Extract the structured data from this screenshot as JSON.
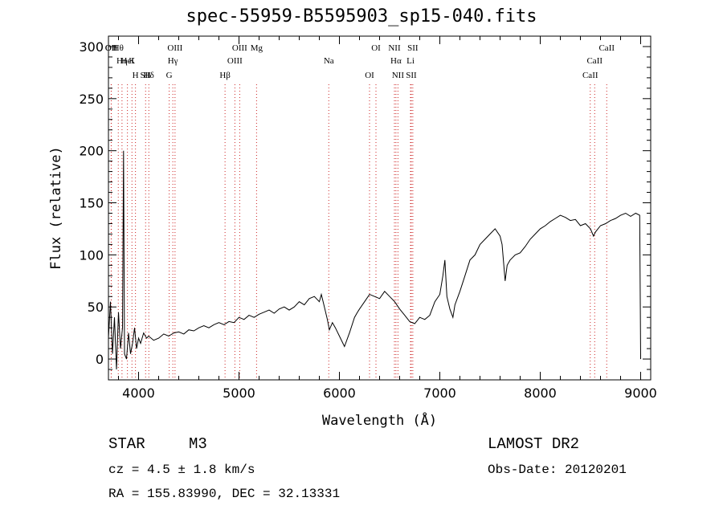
{
  "header": {
    "title": "spec-55959-B5595903_sp15-040.fits"
  },
  "info": {
    "class": "STAR",
    "subclass": "M3",
    "survey": "LAMOST DR2",
    "cz": "cz = 4.5 ± 1.8 km/s",
    "obs_date": "Obs-Date: 20120201",
    "coords": "RA = 155.83990, DEC =  32.13331"
  },
  "colors": {
    "spectrum": "#000000",
    "line_markers": "#cc2222"
  },
  "chart_data": {
    "type": "line",
    "title": "spec-55959-B5595903_sp15-040.fits",
    "xlabel": "Wavelength (Å)",
    "ylabel": "Flux (relative)",
    "xlim": [
      3700,
      9100
    ],
    "ylim": [
      -20,
      310
    ],
    "x_ticks": [
      "4000",
      "5000",
      "6000",
      "7000",
      "8000",
      "9000"
    ],
    "y_ticks": [
      "0",
      "50",
      "100",
      "150",
      "200",
      "250",
      "300"
    ],
    "grid": false,
    "series": [
      {
        "x": [
          3700,
          3720,
          3740,
          3760,
          3780,
          3800,
          3820,
          3840,
          3850,
          3860,
          3880,
          3900,
          3920,
          3940,
          3960,
          3980,
          4000,
          4020,
          4050,
          4080,
          4100,
          4150,
          4200,
          4250,
          4300,
          4350,
          4400,
          4450,
          4500,
          4550,
          4600,
          4650,
          4700,
          4750,
          4800,
          4850,
          4900,
          4950,
          5000,
          5050,
          5100,
          5150,
          5200,
          5250,
          5300,
          5350,
          5400,
          5450,
          5500,
          5550,
          5600,
          5650,
          5700,
          5750,
          5800,
          5820,
          5850,
          5880,
          5900,
          5930,
          5960,
          6000,
          6050,
          6100,
          6150,
          6180,
          6200,
          6250,
          6300,
          6350,
          6400,
          6450,
          6500,
          6550,
          6600,
          6650,
          6700,
          6750,
          6800,
          6850,
          6900,
          6950,
          7000,
          7030,
          7050,
          7070,
          7100,
          7130,
          7150,
          7200,
          7250,
          7300,
          7350,
          7400,
          7450,
          7500,
          7550,
          7600,
          7620,
          7650,
          7670,
          7700,
          7750,
          7800,
          7850,
          7900,
          7950,
          8000,
          8050,
          8100,
          8150,
          8200,
          8250,
          8300,
          8350,
          8400,
          8450,
          8500,
          8530,
          8550,
          8600,
          8650,
          8700,
          8750,
          8800,
          8850,
          8900,
          8950,
          8990,
          9000
        ],
        "y": [
          20,
          55,
          5,
          40,
          -10,
          45,
          10,
          30,
          200,
          5,
          0,
          25,
          5,
          15,
          30,
          10,
          20,
          15,
          25,
          20,
          22,
          18,
          20,
          24,
          22,
          25,
          26,
          24,
          28,
          27,
          30,
          32,
          30,
          33,
          35,
          33,
          36,
          35,
          40,
          38,
          42,
          40,
          43,
          45,
          47,
          44,
          48,
          50,
          47,
          50,
          55,
          52,
          58,
          60,
          55,
          62,
          50,
          38,
          28,
          35,
          30,
          22,
          12,
          25,
          40,
          45,
          48,
          55,
          62,
          60,
          58,
          65,
          60,
          55,
          48,
          42,
          36,
          34,
          40,
          38,
          42,
          55,
          62,
          80,
          95,
          60,
          48,
          40,
          52,
          65,
          80,
          95,
          100,
          110,
          115,
          120,
          125,
          118,
          110,
          75,
          90,
          95,
          100,
          102,
          108,
          115,
          120,
          125,
          128,
          132,
          135,
          138,
          136,
          133,
          134,
          128,
          130,
          125,
          118,
          122,
          128,
          130,
          133,
          135,
          138,
          140,
          137,
          140,
          138,
          0
        ]
      }
    ],
    "annotations": [
      {
        "label": "Hθ",
        "x": 3798
      },
      {
        "label": "K",
        "x": 3934
      },
      {
        "label": "Hδ",
        "x": 4102
      },
      {
        "label": "OII",
        "x": 3727
      },
      {
        "label": "HeI",
        "x": 3889
      },
      {
        "label": "SII",
        "x": 4070
      },
      {
        "label": "OII",
        "x": 3729
      },
      {
        "label": "Hη",
        "x": 3835
      },
      {
        "label": "H",
        "x": 3969
      },
      {
        "label": "OIII",
        "x": 4363
      },
      {
        "label": "Hγ",
        "x": 4341
      },
      {
        "label": "G",
        "x": 4305
      },
      {
        "label": "OIII",
        "x": 5007
      },
      {
        "label": "OIII",
        "x": 4959
      },
      {
        "label": "Hβ",
        "x": 4861
      },
      {
        "label": "Mg",
        "x": 5175
      },
      {
        "label": "Na",
        "x": 5894
      },
      {
        "label": "OI",
        "x": 6300
      },
      {
        "label": "OI",
        "x": 6364
      },
      {
        "label": "Hα",
        "x": 6563
      },
      {
        "label": "SII",
        "x": 6716
      },
      {
        "label": "NII",
        "x": 6548
      },
      {
        "label": "Li",
        "x": 6708
      },
      {
        "label": "NII",
        "x": 6583
      },
      {
        "label": "SII",
        "x": 6731
      },
      {
        "label": "CaII",
        "x": 8542
      },
      {
        "label": "CaII",
        "x": 8498
      },
      {
        "label": "CaII",
        "x": 8662
      }
    ]
  }
}
